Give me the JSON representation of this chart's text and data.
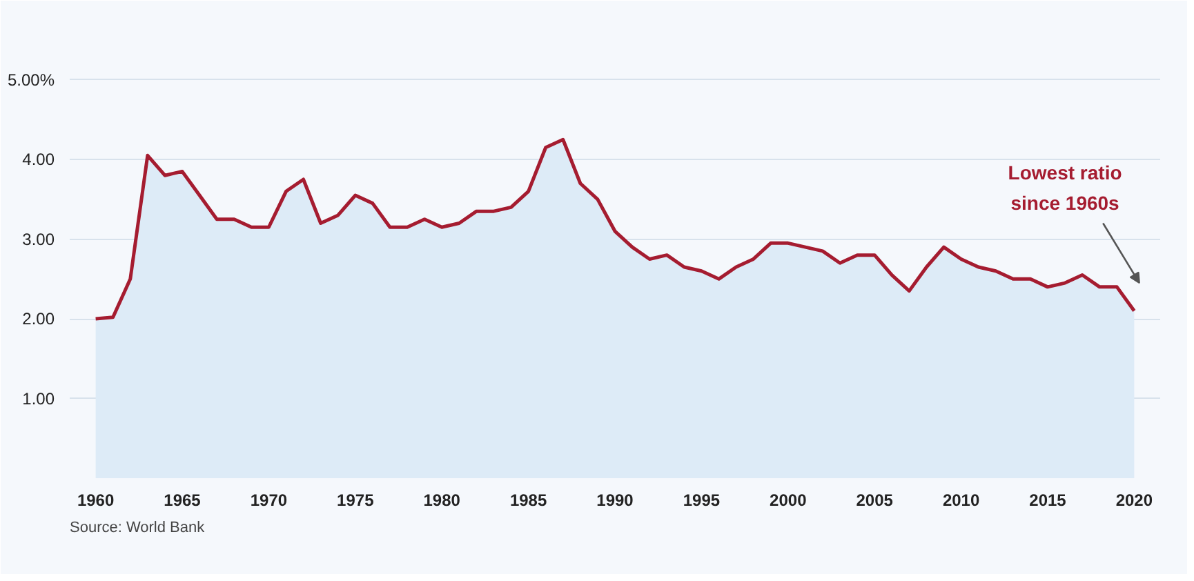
{
  "chart_data": {
    "type": "area",
    "x": [
      1960,
      1961,
      1962,
      1963,
      1964,
      1965,
      1966,
      1967,
      1968,
      1969,
      1970,
      1971,
      1972,
      1973,
      1974,
      1975,
      1976,
      1977,
      1978,
      1979,
      1980,
      1981,
      1982,
      1983,
      1984,
      1985,
      1986,
      1987,
      1988,
      1989,
      1990,
      1991,
      1992,
      1993,
      1994,
      1995,
      1996,
      1997,
      1998,
      1999,
      2000,
      2001,
      2002,
      2003,
      2004,
      2005,
      2006,
      2007,
      2008,
      2009,
      2010,
      2011,
      2012,
      2013,
      2014,
      2015,
      2016,
      2017,
      2018,
      2019,
      2020
    ],
    "series": [
      {
        "color": "#a51c30",
        "values": [
          2.0,
          2.02,
          2.5,
          4.05,
          3.8,
          3.85,
          3.55,
          3.25,
          3.25,
          3.15,
          3.15,
          3.6,
          3.75,
          3.2,
          3.3,
          3.55,
          3.45,
          3.15,
          3.15,
          3.25,
          3.15,
          3.2,
          3.35,
          3.35,
          3.4,
          3.6,
          4.15,
          4.25,
          3.7,
          3.5,
          3.1,
          2.9,
          2.75,
          2.8,
          2.65,
          2.6,
          2.5,
          2.65,
          2.75,
          2.95,
          2.95,
          2.9,
          2.85,
          2.7,
          2.8,
          2.8,
          2.55,
          2.35,
          2.65,
          2.9,
          2.75,
          2.65,
          2.6,
          2.5,
          2.5,
          2.4,
          2.45,
          2.55,
          2.4,
          2.4,
          2.1
        ]
      }
    ],
    "xlim": [
      1958.5,
      2021.5
    ],
    "ylim": [
      0,
      5.3
    ],
    "xticks": [
      1960,
      1965,
      1970,
      1975,
      1980,
      1985,
      1990,
      1995,
      2000,
      2005,
      2010,
      2015,
      2020
    ],
    "yticks": [
      {
        "value": 1,
        "label": "1.00"
      },
      {
        "value": 2,
        "label": "2.00"
      },
      {
        "value": 3,
        "label": "3.00"
      },
      {
        "value": 4,
        "label": "4.00"
      },
      {
        "value": 5,
        "label": "5.00%"
      }
    ],
    "grid": "y",
    "annotations": [
      "Lowest ratio\nsince 1960s",
      "Source: World Bank"
    ]
  }
}
